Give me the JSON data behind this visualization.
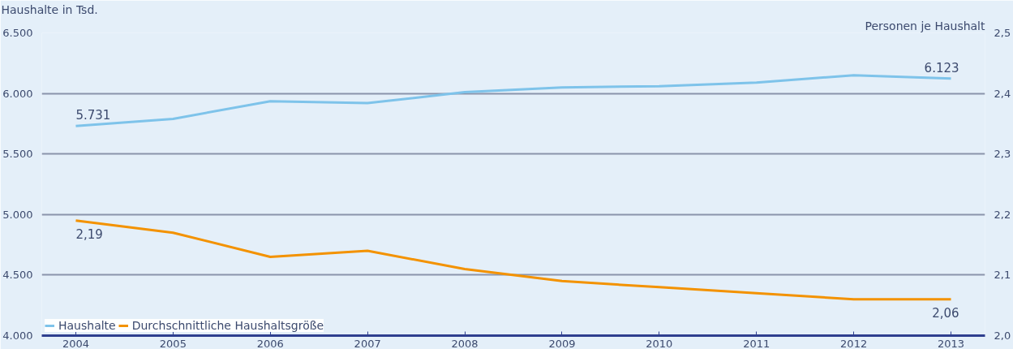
{
  "chart_data": {
    "type": "line",
    "ylabel": "Haushalte in Tsd.",
    "y2label": "Personen je Haushalt",
    "categories": [
      "2004",
      "2005",
      "2006",
      "2007",
      "2008",
      "2009",
      "2010",
      "2011",
      "2012",
      "2013"
    ],
    "series": [
      {
        "name": "Haushalte",
        "color": "#7ec3ea",
        "values": [
          5731,
          5790,
          5935,
          5920,
          6010,
          6050,
          6060,
          6090,
          6150,
          6123
        ],
        "value_labels": [
          "5.731",
          null,
          null,
          null,
          null,
          null,
          null,
          null,
          null,
          "6.123"
        ]
      },
      {
        "name": "Durchschnittliche Haushaltsgröße",
        "color": "#f39200",
        "axis": "y2",
        "values": [
          2.19,
          2.17,
          2.13,
          2.14,
          2.11,
          2.09,
          2.08,
          2.07,
          2.06,
          2.06
        ],
        "value_labels": [
          "2,19",
          null,
          null,
          null,
          null,
          null,
          null,
          null,
          null,
          "2,06"
        ]
      }
    ],
    "ylim": [
      4000,
      6500
    ],
    "yticks": [
      {
        "value": 4000,
        "label": "4.000"
      },
      {
        "value": 4500,
        "label": "4.500"
      },
      {
        "value": 5000,
        "label": "5.000"
      },
      {
        "value": 5500,
        "label": "5.500"
      },
      {
        "value": 6000,
        "label": "6.000"
      },
      {
        "value": 6500,
        "label": "6.500"
      }
    ],
    "y2lim": [
      2.0,
      2.5
    ],
    "y2ticks": [
      {
        "value": 2.0,
        "label": "2,0"
      },
      {
        "value": 2.1,
        "label": "2,1"
      },
      {
        "value": 2.2,
        "label": "2,2"
      },
      {
        "value": 2.3,
        "label": "2,3"
      },
      {
        "value": 2.4,
        "label": "2,4"
      },
      {
        "value": 2.5,
        "label": "2,5"
      }
    ],
    "grid": "y",
    "legend": "bottom left",
    "marker": "none",
    "line_style": "solid"
  }
}
